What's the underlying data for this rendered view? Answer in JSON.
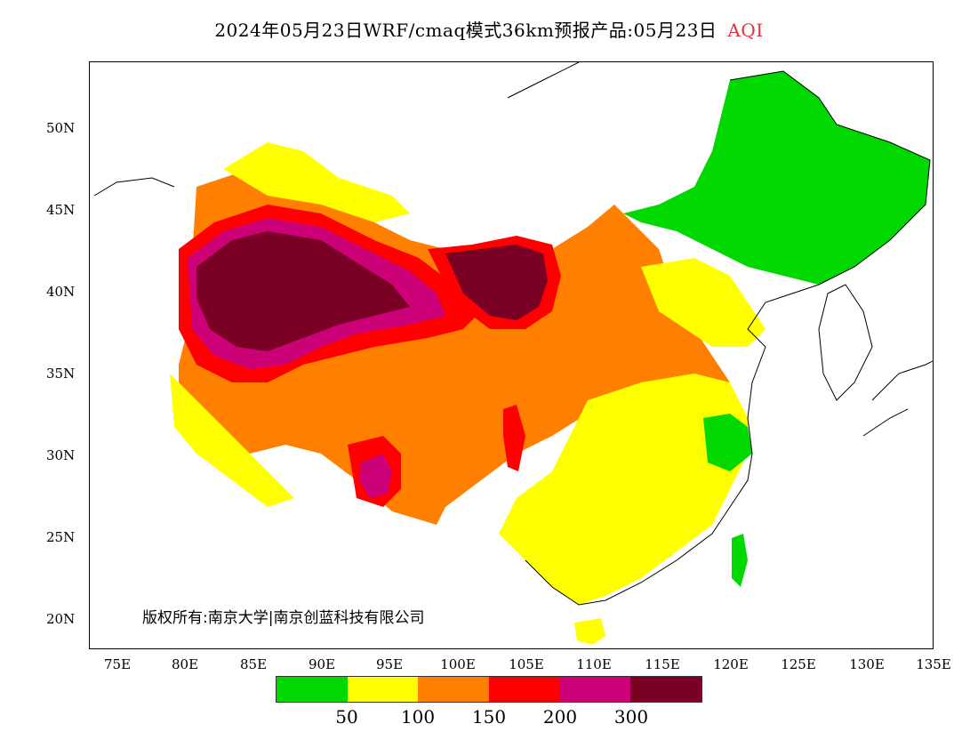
{
  "title": {
    "main": "2024年05月23日WRF/cmaq模式36km预报产品:05月23日",
    "variable": "AQI"
  },
  "axes": {
    "y_ticks": [
      "50N",
      "45N",
      "40N",
      "35N",
      "30N",
      "25N",
      "20N"
    ],
    "x_ticks": [
      "75E",
      "80E",
      "85E",
      "90E",
      "95E",
      "100E",
      "105E",
      "110E",
      "115E",
      "120E",
      "125E",
      "130E",
      "135E"
    ]
  },
  "legend": {
    "colors": [
      "#00d800",
      "#ffff00",
      "#ff8000",
      "#ff0000",
      "#cc0077",
      "#7a0025"
    ],
    "labels": [
      "50",
      "100",
      "150",
      "200",
      "300"
    ]
  },
  "copyright": "版权所有:南京大学|南京创蓝科技有限公司",
  "colors": {
    "good": "#00d800",
    "moderate": "#ffff00",
    "sensitive": "#ff8000",
    "unhealthy": "#ff0000",
    "very_unhealthy": "#cc0077",
    "hazardous": "#7a0025",
    "aqi_label": "#e0303a",
    "station_marker": "#8a2be2"
  }
}
